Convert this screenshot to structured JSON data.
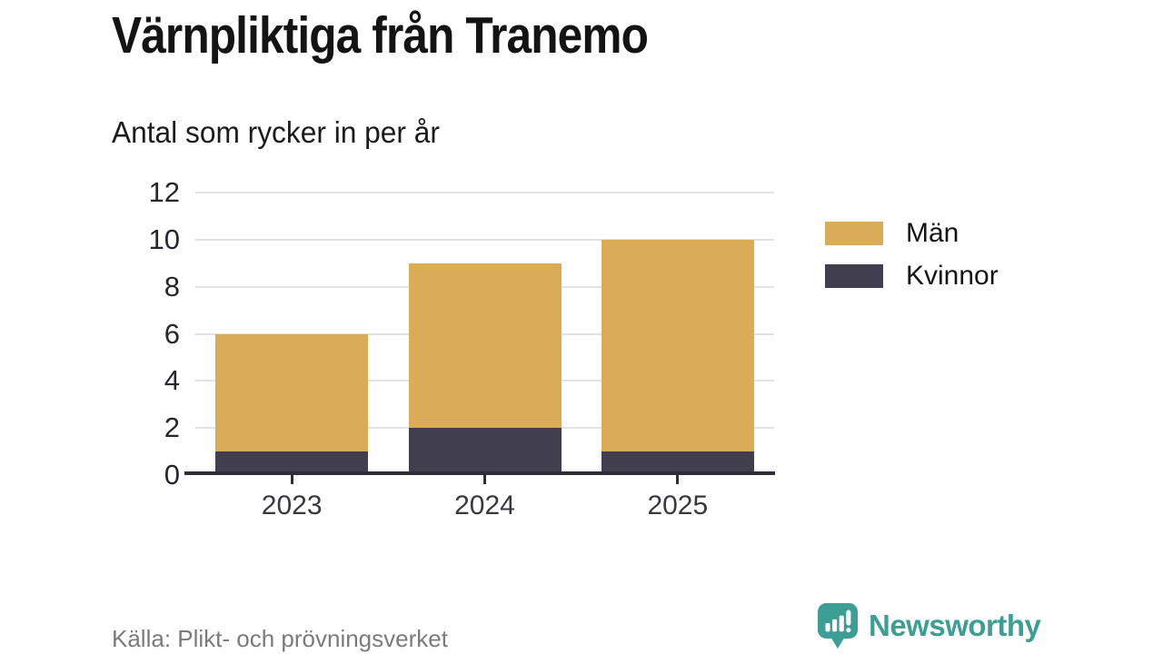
{
  "header": {
    "title": "Värnpliktiga från Tranemo",
    "subtitle": "Antal som rycker in per år"
  },
  "chart_data": {
    "type": "bar",
    "stacked": true,
    "title": "Värnpliktiga från Tranemo",
    "subtitle": "Antal som rycker in per år",
    "categories": [
      "2023",
      "2024",
      "2025"
    ],
    "series": [
      {
        "name": "Män",
        "values": [
          5,
          7,
          9
        ],
        "color": "#dbac57"
      },
      {
        "name": "Kvinnor",
        "values": [
          1,
          2,
          1
        ],
        "color": "#413f4e"
      }
    ],
    "stack_totals": [
      6,
      9,
      10
    ],
    "ylim": [
      0,
      12
    ],
    "yticks": [
      0,
      2,
      4,
      6,
      8,
      10,
      12
    ],
    "grid": true,
    "legend_position": "right",
    "xlabel": "",
    "ylabel": ""
  },
  "footer": {
    "source": "Källa: Plikt- och prövningsverket",
    "brand": "Newsworthy",
    "brand_color": "#3c9e95"
  }
}
